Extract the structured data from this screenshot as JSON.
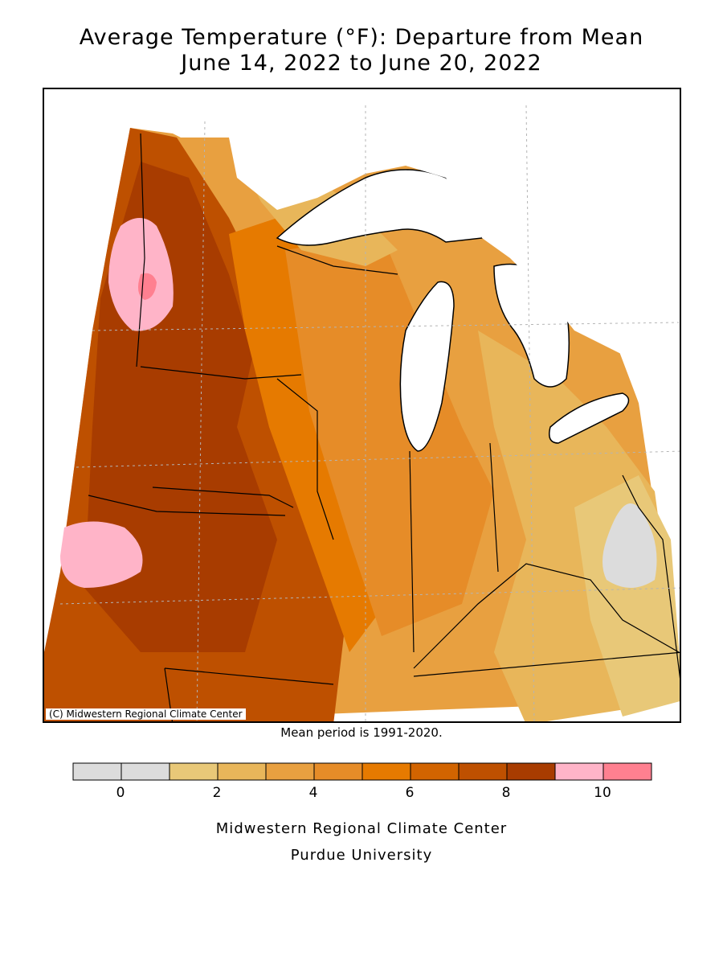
{
  "title": {
    "line1": "Average Temperature (°F): Departure from Mean",
    "line2": "June 14, 2022 to June 20, 2022"
  },
  "map": {
    "copyright": "(C) Midwestern Regional Climate Center",
    "mean_period": "Mean period is 1991-2020."
  },
  "legend": {
    "colors": [
      "#dcdcdc",
      "#dcdcdc",
      "#e8c878",
      "#e8b65a",
      "#e8a040",
      "#e68c28",
      "#e67a00",
      "#d26400",
      "#be5000",
      "#a83c00",
      "#ffb4c8",
      "#ff8090"
    ],
    "tick_labels": [
      "0",
      "2",
      "4",
      "6",
      "8",
      "10"
    ]
  },
  "footer": {
    "line1": "Midwestern Regional Climate Center",
    "line2": "Purdue University"
  }
}
